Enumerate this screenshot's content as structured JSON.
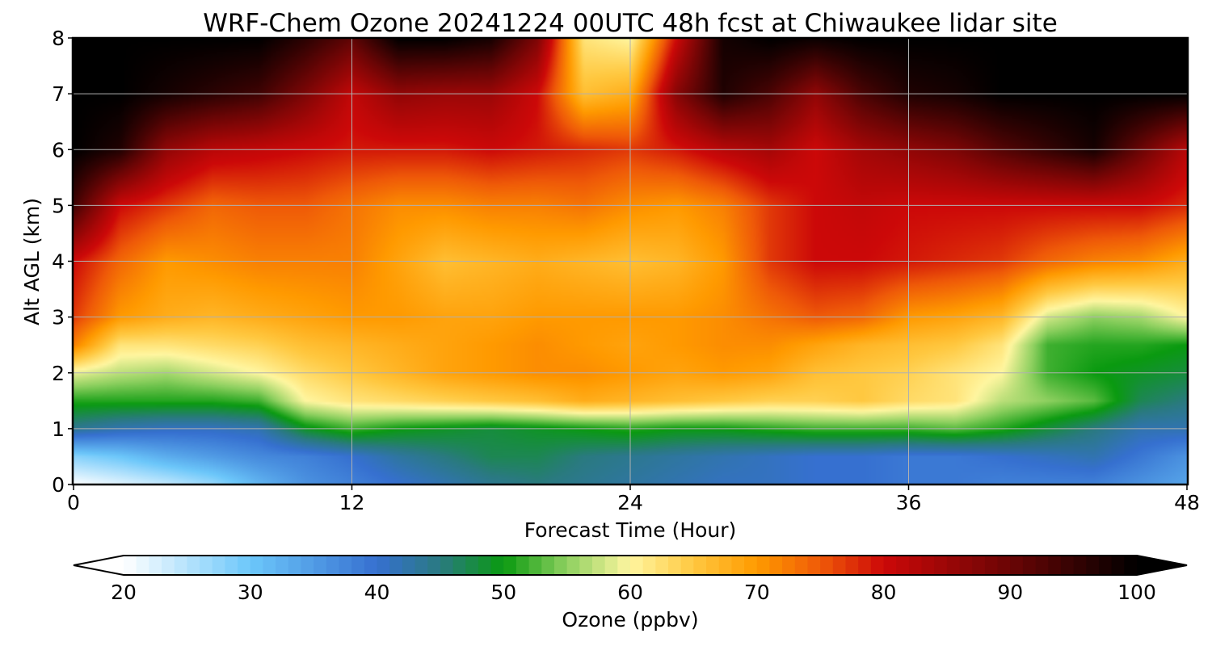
{
  "chart_data": {
    "type": "heatmap",
    "title": "WRF-Chem Ozone  20241224 00UTC 48h fcst at Chiwaukee lidar site",
    "xlabel": "Forecast Time (Hour)",
    "ylabel": "Alt AGL (km)",
    "xlim": [
      0,
      48
    ],
    "ylim": [
      0,
      8
    ],
    "xticks": [
      0,
      12,
      24,
      36,
      48
    ],
    "yticks": [
      0,
      1,
      2,
      3,
      4,
      5,
      6,
      7,
      8
    ],
    "grid": true,
    "colorbar": {
      "label": "Ozone  (ppbv)",
      "min": 20,
      "max": 100,
      "ticks": [
        20,
        30,
        40,
        50,
        60,
        70,
        80,
        90,
        100
      ],
      "extend": "both",
      "stops": [
        {
          "value": 20,
          "color": "#ffffff"
        },
        {
          "value": 30,
          "color": "#6cc7fa"
        },
        {
          "value": 40,
          "color": "#3670d0"
        },
        {
          "value": 45,
          "color": "#2a7a80"
        },
        {
          "value": 50,
          "color": "#0a9a10"
        },
        {
          "value": 55,
          "color": "#8ed060"
        },
        {
          "value": 60,
          "color": "#fff6a0"
        },
        {
          "value": 65,
          "color": "#ffc840"
        },
        {
          "value": 70,
          "color": "#ff9a00"
        },
        {
          "value": 75,
          "color": "#ef5a08"
        },
        {
          "value": 80,
          "color": "#cc0808"
        },
        {
          "value": 90,
          "color": "#6a0505"
        },
        {
          "value": 100,
          "color": "#000000"
        }
      ]
    },
    "hours": [
      0,
      2,
      4,
      6,
      8,
      10,
      12,
      14,
      16,
      18,
      20,
      22,
      24,
      26,
      28,
      30,
      32,
      34,
      36,
      38,
      40,
      42,
      44,
      46,
      48
    ],
    "altitudes_km": [
      0,
      0.5,
      1,
      1.5,
      2,
      2.5,
      3,
      4,
      5,
      6,
      7,
      8
    ],
    "ozone_ppbv": [
      [
        20,
        22,
        24,
        27,
        32,
        36,
        38,
        40,
        42,
        44,
        45,
        44,
        43,
        42,
        41,
        41,
        40,
        40,
        39,
        39,
        38,
        38,
        38,
        36,
        34
      ],
      [
        28,
        30,
        33,
        35,
        37,
        38,
        40,
        43,
        45,
        47,
        47,
        45,
        44,
        43,
        42,
        41,
        40,
        40,
        39,
        39,
        40,
        41,
        42,
        39,
        36
      ],
      [
        44,
        42,
        41,
        41,
        42,
        49,
        52,
        50,
        49,
        48,
        49,
        50,
        51,
        50,
        50,
        51,
        52,
        52,
        52,
        53,
        51,
        48,
        45,
        42,
        42
      ],
      [
        51,
        51,
        51,
        51,
        52,
        60,
        62,
        63,
        64,
        65,
        66,
        68,
        67,
        66,
        65,
        64,
        64,
        65,
        63,
        62,
        57,
        55,
        53,
        47,
        45
      ],
      [
        59,
        57,
        56,
        58,
        60,
        63,
        65,
        67,
        69,
        70,
        71,
        71,
        70,
        69,
        70,
        69,
        66,
        65,
        64,
        62,
        60,
        52,
        50,
        49,
        48
      ],
      [
        72,
        62,
        62,
        63,
        64,
        66,
        67,
        68,
        69,
        70,
        71,
        70,
        69,
        70,
        71,
        71,
        69,
        67,
        66,
        65,
        62,
        52,
        51,
        51,
        50
      ],
      [
        77,
        70,
        68,
        67,
        68,
        69,
        70,
        70,
        69,
        69,
        70,
        70,
        70,
        70,
        71,
        73,
        75,
        74,
        70,
        69,
        67,
        58,
        55,
        56,
        60
      ],
      [
        80,
        74,
        70,
        71,
        72,
        72,
        72,
        69,
        66,
        67,
        68,
        67,
        66,
        67,
        70,
        77,
        80,
        80,
        79,
        78,
        77,
        74,
        72,
        71,
        68
      ],
      [
        94,
        80,
        77,
        74,
        75,
        75,
        73,
        71,
        71,
        72,
        72,
        73,
        71,
        70,
        72,
        77,
        80,
        81,
        80,
        80,
        80,
        80,
        80,
        80,
        78
      ],
      [
        100,
        97,
        86,
        82,
        81,
        80,
        79,
        79,
        79,
        80,
        79,
        78,
        77,
        79,
        82,
        84,
        80,
        84,
        86,
        88,
        92,
        95,
        98,
        90,
        82
      ],
      [
        100,
        100,
        98,
        96,
        94,
        88,
        81,
        86,
        85,
        85,
        80,
        66,
        68,
        87,
        97,
        93,
        86,
        93,
        97,
        98,
        100,
        100,
        100,
        100,
        100
      ],
      [
        100,
        100,
        100,
        100,
        100,
        96,
        91,
        100,
        100,
        98,
        88,
        62,
        60,
        80,
        98,
        100,
        99,
        100,
        100,
        100,
        100,
        100,
        100,
        100,
        100
      ]
    ]
  }
}
